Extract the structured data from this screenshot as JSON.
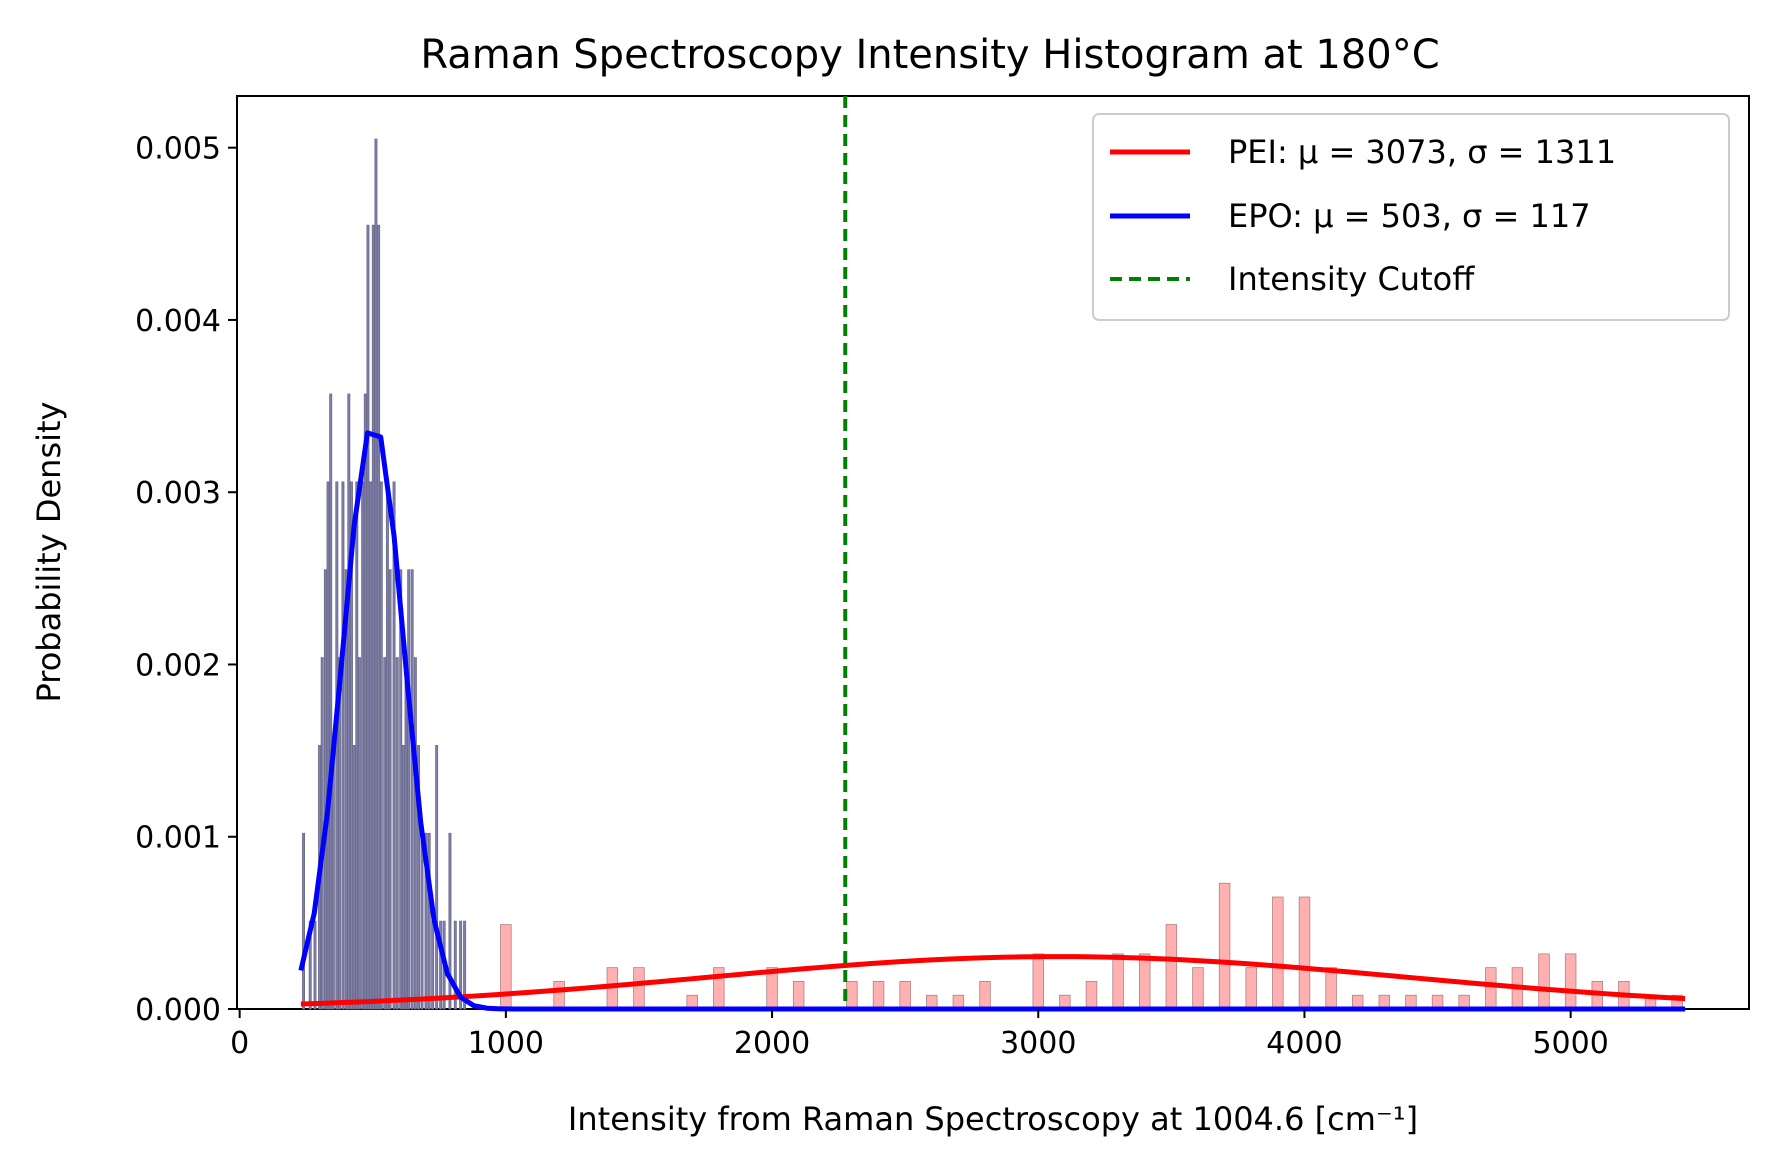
{
  "chart_data": {
    "type": "histogram",
    "title": "Raman Spectroscopy Intensity Histogram at 180°C",
    "xlabel": "Intensity from Raman Spectroscopy at 1004.6 [cm⁻¹]",
    "ylabel": "Probability Density",
    "xlim": [
      -10,
      5670
    ],
    "ylim": [
      0,
      0.0053
    ],
    "xticks": [
      0,
      1000,
      2000,
      3000,
      4000,
      5000
    ],
    "xtick_labels": [
      "0",
      "1000",
      "2000",
      "3000",
      "4000",
      "5000"
    ],
    "yticks": [
      0,
      0.001,
      0.002,
      0.003,
      0.004,
      0.005
    ],
    "ytick_labels": [
      "0.000",
      "0.001",
      "0.002",
      "0.003",
      "0.004",
      "0.005"
    ],
    "grid": false,
    "legend_placement": "top-right",
    "series": [
      {
        "name": "PEI: μ = 3073, σ = 1311",
        "kind": "normal-fit",
        "mean": 3073,
        "std": 1311,
        "x_range": [
          230,
          5430
        ],
        "color": "#ff0000"
      },
      {
        "name": "EPO: μ = 503, σ = 117",
        "kind": "normal-fit",
        "mean": 503,
        "std": 117,
        "x_range": [
          230,
          5430
        ],
        "color": "#0000ff"
      },
      {
        "name": "Intensity Cutoff",
        "kind": "vertical-line",
        "x": 2275,
        "color": "#008000"
      }
    ],
    "histograms": [
      {
        "group": "EPO",
        "color": "#8080aa",
        "bin_width": 8,
        "bins": [
          [
            240,
            0.00102
          ],
          [
            265,
            0.00051
          ],
          [
            283,
            0.00051
          ],
          [
            300,
            0.00153
          ],
          [
            310,
            0.00204
          ],
          [
            322,
            0.00255
          ],
          [
            332,
            0.00306
          ],
          [
            342,
            0.00357
          ],
          [
            352,
            0.00153
          ],
          [
            365,
            0.00306
          ],
          [
            375,
            0.00204
          ],
          [
            388,
            0.00306
          ],
          [
            400,
            0.00255
          ],
          [
            410,
            0.00357
          ],
          [
            420,
            0.00306
          ],
          [
            430,
            0.00153
          ],
          [
            440,
            0.00306
          ],
          [
            450,
            0.00204
          ],
          [
            462,
            0.00306
          ],
          [
            472,
            0.00357
          ],
          [
            482,
            0.00455
          ],
          [
            492,
            0.00306
          ],
          [
            502,
            0.00455
          ],
          [
            512,
            0.00505
          ],
          [
            522,
            0.00455
          ],
          [
            532,
            0.00306
          ],
          [
            545,
            0.00204
          ],
          [
            555,
            0.00306
          ],
          [
            565,
            0.00255
          ],
          [
            580,
            0.00306
          ],
          [
            592,
            0.00204
          ],
          [
            605,
            0.00255
          ],
          [
            615,
            0.00153
          ],
          [
            625,
            0.00204
          ],
          [
            635,
            0.00255
          ],
          [
            648,
            0.00255
          ],
          [
            660,
            0.00204
          ],
          [
            672,
            0.00153
          ],
          [
            685,
            0.00102
          ],
          [
            700,
            0.00102
          ],
          [
            712,
            0.00102
          ],
          [
            725,
            0.00051
          ],
          [
            740,
            0.00153
          ],
          [
            755,
            0.00051
          ],
          [
            768,
            0.00051
          ],
          [
            790,
            0.00102
          ],
          [
            810,
            0.00051
          ],
          [
            830,
            0.00051
          ],
          [
            845,
            0.00051
          ]
        ]
      },
      {
        "group": "PEI",
        "color": "#ffb0b0",
        "bin_width": 40,
        "bins": [
          [
            1000,
            0.00049
          ],
          [
            1200,
            0.00016
          ],
          [
            1400,
            0.00024
          ],
          [
            1500,
            0.00024
          ],
          [
            1700,
            8e-05
          ],
          [
            1800,
            0.00024
          ],
          [
            2000,
            0.00024
          ],
          [
            2100,
            0.00016
          ],
          [
            2300,
            0.00016
          ],
          [
            2400,
            0.00016
          ],
          [
            2500,
            0.00016
          ],
          [
            2600,
            8e-05
          ],
          [
            2700,
            8e-05
          ],
          [
            2800,
            0.00016
          ],
          [
            3000,
            0.00032
          ],
          [
            3100,
            8e-05
          ],
          [
            3200,
            0.00016
          ],
          [
            3300,
            0.00032
          ],
          [
            3400,
            0.00032
          ],
          [
            3500,
            0.00049
          ],
          [
            3600,
            0.00024
          ],
          [
            3700,
            0.00073
          ],
          [
            3800,
            0.00024
          ],
          [
            3900,
            0.00065
          ],
          [
            4000,
            0.00065
          ],
          [
            4100,
            0.00024
          ],
          [
            4200,
            8e-05
          ],
          [
            4300,
            8e-05
          ],
          [
            4400,
            8e-05
          ],
          [
            4500,
            8e-05
          ],
          [
            4600,
            8e-05
          ],
          [
            4700,
            0.00024
          ],
          [
            4800,
            0.00024
          ],
          [
            4900,
            0.00032
          ],
          [
            5000,
            0.00032
          ],
          [
            5100,
            0.00016
          ],
          [
            5200,
            0.00016
          ],
          [
            5300,
            8e-05
          ],
          [
            5400,
            8e-05
          ]
        ]
      }
    ]
  }
}
